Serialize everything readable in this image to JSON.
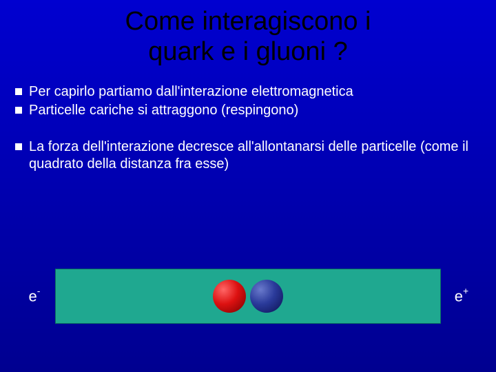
{
  "title_line1": "Come interagiscono i",
  "title_line2": "quark e i gluoni ?",
  "bullets": {
    "b1": "Per capirlo partiamo dall'interazione elettromagnetica",
    "b2": "Particelle cariche si attraggono (respingono)",
    "b3": "La forza dell'interazione decresce all'allontanarsi delle particelle (come il quadrato della distanza fra esse)"
  },
  "diagram": {
    "left_label_base": "e",
    "left_label_sup": "-",
    "right_label_base": "e",
    "right_label_sup": "+",
    "box_color": "#1fa890",
    "sphere_red": {
      "highlight": "#ff6666",
      "mid": "#dd1111",
      "shadow": "#770000"
    },
    "sphere_blue": {
      "highlight": "#6a7acc",
      "mid": "#2a3a9a",
      "shadow": "#0a1050"
    }
  },
  "colors": {
    "bg_top": "#0000d0",
    "bg_bottom": "#000090",
    "title_color": "#000000",
    "text_color": "#ffffff"
  }
}
